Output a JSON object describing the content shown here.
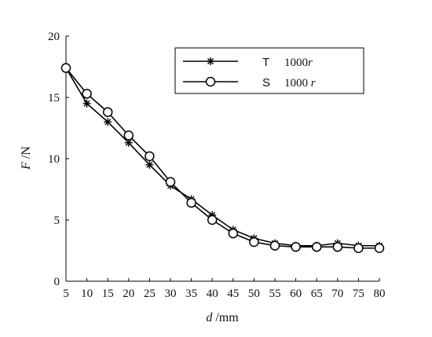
{
  "chart_data": {
    "type": "line",
    "xlabel_var": "d",
    "xlabel_unit": " /mm",
    "ylabel_var": "F",
    "ylabel_unit": " /N",
    "x": [
      5,
      10,
      15,
      20,
      25,
      30,
      35,
      40,
      45,
      50,
      55,
      60,
      65,
      70,
      75,
      80
    ],
    "xlim": [
      5,
      80
    ],
    "ylim": [
      0,
      20
    ],
    "xticks": [
      "5",
      "10",
      "15",
      "20",
      "25",
      "30",
      "35",
      "40",
      "45",
      "50",
      "55",
      "60",
      "65",
      "70",
      "75",
      "80"
    ],
    "yticks": [
      "0",
      "5",
      "10",
      "15",
      "20"
    ],
    "grid": false,
    "legend_position": "top-right",
    "series": [
      {
        "code": "T",
        "name": "1000r",
        "marker": "asterisk",
        "color": "#000000",
        "values": [
          17.4,
          14.5,
          13.0,
          11.3,
          9.5,
          7.8,
          6.7,
          5.4,
          4.2,
          3.5,
          3.1,
          2.9,
          2.9,
          3.1,
          2.9,
          2.9
        ]
      },
      {
        "code": "S",
        "name": "1000 r",
        "marker": "circle",
        "color": "#000000",
        "values": [
          17.4,
          15.3,
          13.8,
          11.9,
          10.2,
          8.1,
          6.4,
          5.0,
          3.9,
          3.2,
          2.9,
          2.8,
          2.8,
          2.8,
          2.7,
          2.7
        ]
      }
    ]
  }
}
